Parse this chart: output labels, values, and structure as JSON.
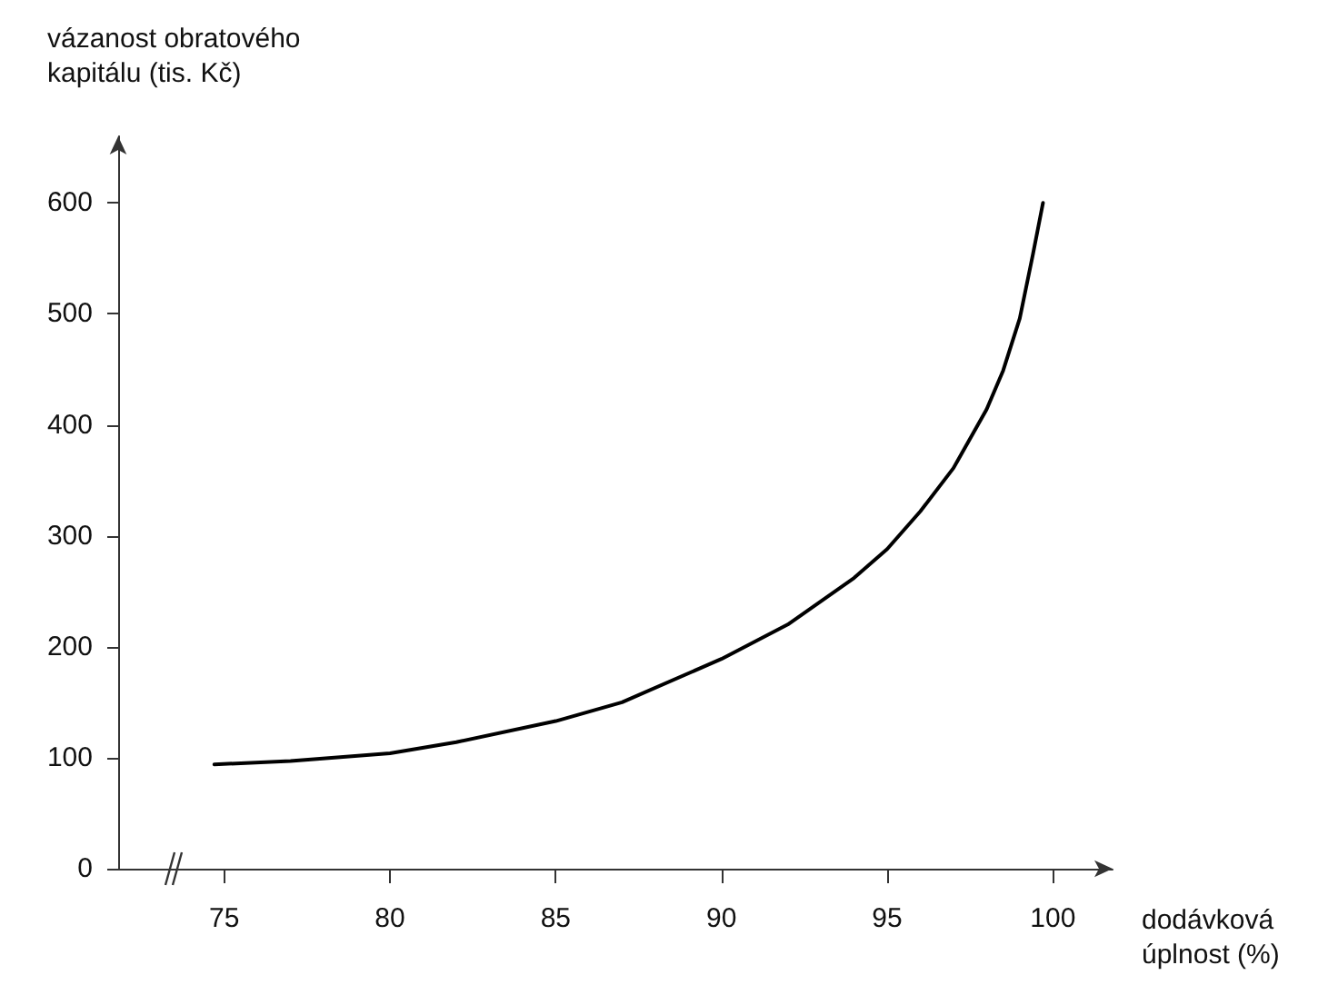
{
  "chart_data": {
    "type": "line",
    "xlabel": "dodávková úplnost (%)",
    "ylabel": "vázanost obratového kapitálu (tis. Kč)",
    "series": [
      {
        "color": "#000000",
        "x": [
          74.7,
          77,
          80,
          82,
          85,
          87,
          90,
          92,
          94,
          95,
          96,
          97,
          98,
          98.5,
          99,
          99.4,
          99.7
        ],
        "values": [
          94,
          97,
          104,
          114,
          133,
          150,
          189,
          220,
          262,
          288,
          322,
          361,
          414,
          449,
          496,
          554,
          600
        ]
      }
    ],
    "xlim": [
      71.8,
      101.8
    ],
    "xticks": [
      75,
      80,
      85,
      90,
      95,
      100
    ],
    "ylim": [
      0,
      660
    ],
    "yticks": [
      0,
      100,
      200,
      300,
      400,
      500,
      600
    ],
    "grid": false,
    "marker": "none",
    "line_style": "solid"
  }
}
